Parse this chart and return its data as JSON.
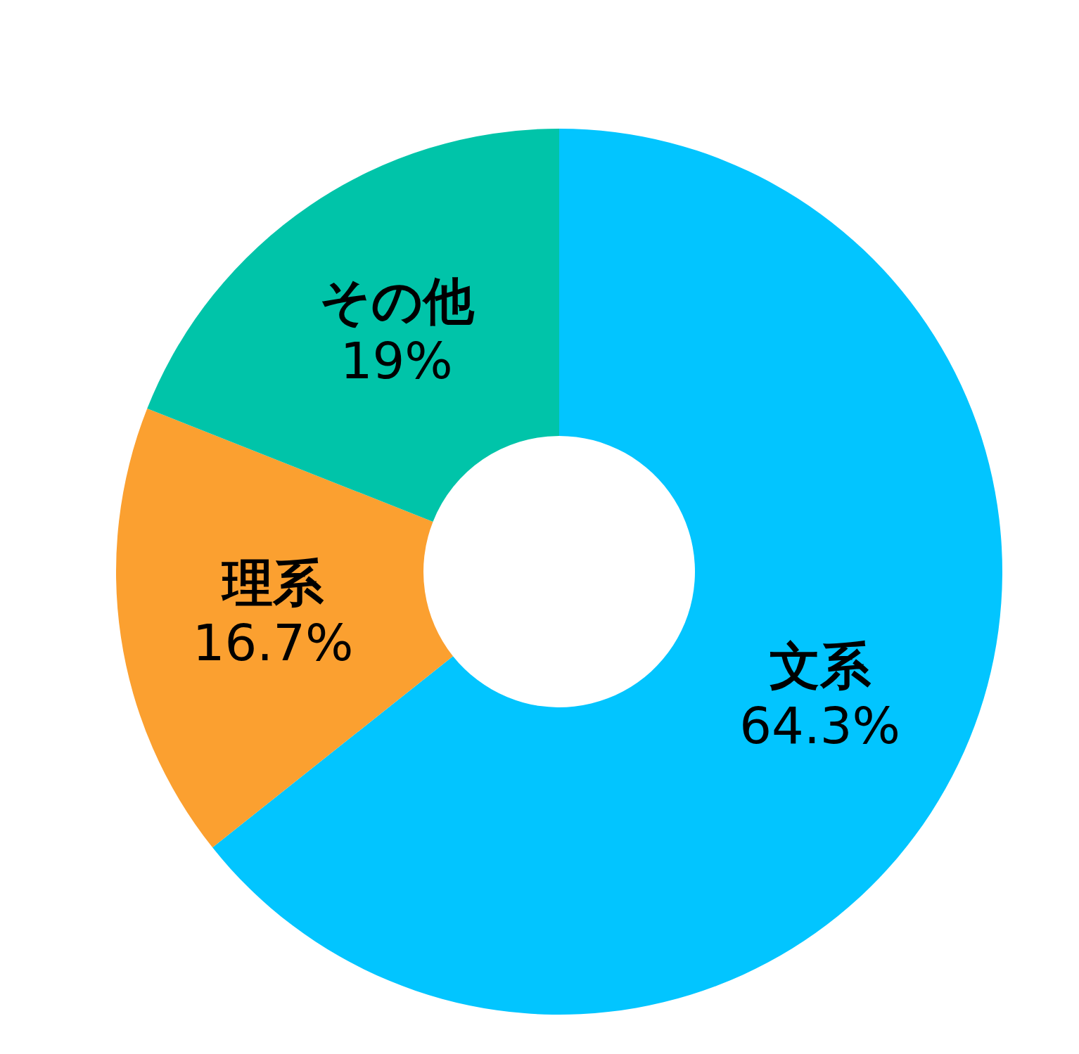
{
  "chart_data": {
    "type": "donut",
    "categories": [
      "文系",
      "理系",
      "その他"
    ],
    "values": [
      64.3,
      16.7,
      19
    ],
    "colors": [
      "#02c5ff",
      "#fba030",
      "#00c4a9"
    ],
    "value_labels": [
      "64.3%",
      "16.7%",
      "19%"
    ]
  }
}
